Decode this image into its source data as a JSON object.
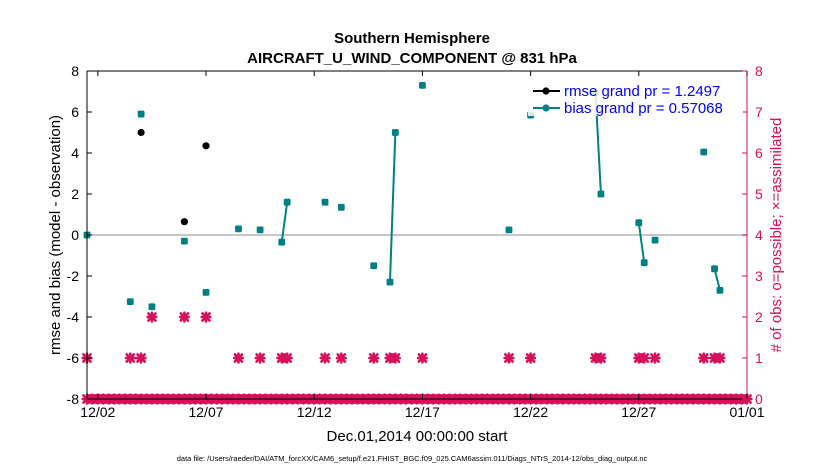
{
  "chart_data": {
    "type": "scatter",
    "title": "Southern Hemisphere",
    "subtitle": "AIRCRAFT_U_WIND_COMPONENT @ 831 hPa",
    "xlabel": "Dec.01,2014 00:00:00 start",
    "ylabel": "rmse and bias (model - observation)",
    "y2label": "# of obs: o=possible; ×=assimilated",
    "footnote": "data file: /Users/raeder/DAI/ATM_forcXX/CAM6_setup/f.e21.FHIST_BGC.f09_025.CAM6assim.011/Diags_NTrS_2014-12/obs_diag_output.nc",
    "xlim": [
      1.5,
      32
    ],
    "ylim": [
      -8,
      8
    ],
    "y2lim": [
      0,
      8
    ],
    "xticks": [
      2,
      7,
      12,
      17,
      22,
      27,
      32
    ],
    "xticklabels": [
      "12/02",
      "12/07",
      "12/12",
      "12/17",
      "12/22",
      "12/27",
      "01/01"
    ],
    "yticks": [
      -8,
      -6,
      -4,
      -2,
      0,
      2,
      4,
      6,
      8
    ],
    "y2ticks": [
      0,
      1,
      2,
      3,
      4,
      5,
      6,
      7,
      8
    ],
    "zero_line": 0,
    "legend_position": "top-right",
    "colors": {
      "rmse": "#000000",
      "bias": "#008080",
      "obs": "#d6105a",
      "y2axis": "#d6105a",
      "legend_text": "#0000ff",
      "zero_line": "#b3b3b3"
    },
    "series": [
      {
        "name": "rmse grand pr = 1.2497",
        "points": [
          [
            4.0,
            5.0
          ],
          [
            6.0,
            0.65
          ],
          [
            7.0,
            4.35
          ]
        ]
      },
      {
        "name": "bias grand pr = 0.57068",
        "points": [
          [
            1.5,
            0.0
          ],
          [
            3.5,
            -3.25
          ],
          [
            4.0,
            5.9
          ],
          [
            4.5,
            -3.5
          ],
          [
            6.0,
            -0.3
          ],
          [
            7.0,
            -2.8
          ],
          [
            8.5,
            0.3
          ],
          [
            9.5,
            0.25
          ],
          [
            10.5,
            -0.35
          ],
          [
            10.75,
            1.6
          ],
          [
            12.5,
            1.6
          ],
          [
            13.25,
            1.35
          ],
          [
            14.75,
            -1.5
          ],
          [
            15.5,
            -2.3
          ],
          [
            15.75,
            5.0
          ],
          [
            17.0,
            7.3
          ],
          [
            21.0,
            0.25
          ],
          [
            22.0,
            5.85
          ],
          [
            25.0,
            6.95
          ],
          [
            25.25,
            2.0
          ],
          [
            27.0,
            0.6
          ],
          [
            27.25,
            -1.35
          ],
          [
            27.75,
            -0.25
          ],
          [
            30.0,
            4.05
          ],
          [
            30.5,
            -1.65
          ],
          [
            30.75,
            -2.7
          ]
        ],
        "segments": [
          [
            [
              10.5,
              -0.35
            ],
            [
              10.75,
              1.6
            ]
          ],
          [
            [
              15.5,
              -2.3
            ],
            [
              15.75,
              5.0
            ]
          ],
          [
            [
              25.0,
              6.95
            ],
            [
              25.25,
              2.0
            ]
          ],
          [
            [
              27.0,
              0.6
            ],
            [
              27.25,
              -1.35
            ]
          ],
          [
            [
              30.5,
              -1.65
            ],
            [
              30.75,
              -2.7
            ]
          ]
        ]
      },
      {
        "name": "obs possible",
        "x": [
          1.5,
          3.5,
          4.0,
          4.5,
          6.0,
          7.0,
          8.5,
          9.5,
          10.5,
          10.75,
          12.5,
          13.25,
          14.75,
          15.5,
          15.75,
          17.0,
          21.0,
          22.0,
          25.0,
          25.25,
          27.0,
          27.25,
          27.75,
          30.0,
          30.5,
          30.75
        ],
        "values": [
          1,
          1,
          1,
          2,
          2,
          2,
          1,
          1,
          1,
          1,
          1,
          1,
          1,
          1,
          1,
          1,
          1,
          1,
          1,
          1,
          1,
          1,
          1,
          1,
          1,
          1
        ]
      },
      {
        "name": "obs assimilated",
        "x_start": 1.5,
        "x_end": 32.0,
        "x_step": 0.25,
        "value": 0
      }
    ]
  }
}
